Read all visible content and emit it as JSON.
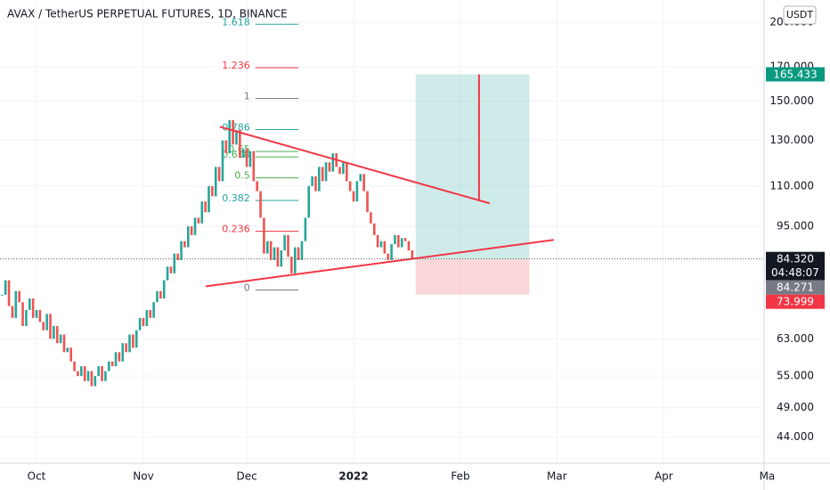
{
  "chart_data": {
    "type": "candlestick",
    "title": "AVAX / TetherUS PERPETUAL FUTURES, 1D, BINANCE",
    "currency": "USDT",
    "x": [
      -10,
      -9,
      -8,
      -7,
      -6,
      -5,
      -4,
      -3,
      -2,
      -1,
      0,
      1,
      2,
      3,
      4,
      5,
      6,
      7,
      8,
      9,
      10,
      11,
      12,
      13,
      14,
      15,
      16,
      17,
      18,
      19,
      20,
      21,
      22,
      23,
      24,
      25,
      26,
      27,
      28,
      29,
      30,
      31,
      32,
      33,
      34,
      35,
      36,
      37,
      38,
      39,
      40,
      41,
      42,
      43,
      44,
      45,
      46,
      47,
      48,
      49,
      50,
      51,
      52,
      53,
      54,
      55,
      56,
      57,
      58,
      59,
      60,
      61,
      62,
      63,
      64,
      65,
      66,
      67,
      68,
      69,
      70,
      71,
      72,
      73,
      74,
      75,
      76,
      77,
      78,
      79,
      80,
      81,
      82,
      83,
      84,
      85,
      86,
      87,
      88,
      89,
      90,
      91,
      92,
      93,
      94,
      95,
      96,
      97,
      98,
      99,
      100,
      101,
      102,
      103,
      104,
      105,
      106,
      107,
      108,
      109
    ],
    "values": [
      74,
      78,
      71,
      68,
      75,
      72,
      66,
      70,
      73,
      68,
      70,
      67,
      65,
      69,
      63,
      66,
      62,
      64,
      60,
      61,
      58,
      56,
      55,
      57,
      54,
      56,
      53,
      55,
      57,
      54,
      56,
      58,
      57,
      60,
      58,
      62,
      60,
      64,
      61,
      65,
      68,
      66,
      70,
      68,
      72,
      75,
      73,
      78,
      82,
      80,
      86,
      84,
      90,
      88,
      95,
      92,
      98,
      96,
      104,
      100,
      110,
      106,
      118,
      112,
      130,
      124,
      140,
      128,
      135,
      122,
      126,
      118,
      125,
      112,
      108,
      98,
      86,
      90,
      84,
      88,
      82,
      87,
      92,
      85,
      80,
      88,
      84,
      90,
      98,
      110,
      114,
      108,
      118,
      112,
      120,
      116,
      124,
      118,
      115,
      120,
      112,
      108,
      104,
      112,
      115,
      108,
      100,
      96,
      92,
      88,
      90,
      86,
      84,
      89,
      92,
      88,
      91,
      90,
      87,
      84.32
    ],
    "up_color": "#26a69a",
    "down_color": "#ef5350",
    "xlim": [
      -10.6,
      213
    ],
    "xticks": [
      {
        "value": 0,
        "label": "Oct"
      },
      {
        "value": 31,
        "label": "Nov"
      },
      {
        "value": 61,
        "label": "Dec"
      },
      {
        "value": 92,
        "label": "2022"
      },
      {
        "value": 123,
        "label": "Feb"
      },
      {
        "value": 151,
        "label": "Mar"
      },
      {
        "value": 182,
        "label": "Apr"
      },
      {
        "value": 212,
        "label": "Ma"
      }
    ],
    "ylim": [
      40,
      217
    ],
    "log_scale": true,
    "yticks": [
      {
        "value": 44,
        "label": "44.000"
      },
      {
        "value": 49,
        "label": "49.000"
      },
      {
        "value": 55,
        "label": "55.000"
      },
      {
        "value": 63,
        "label": "63.000"
      },
      {
        "value": 95,
        "label": "95.000"
      },
      {
        "value": 110,
        "label": "110.000"
      },
      {
        "value": 130,
        "label": "130.000"
      },
      {
        "value": 150,
        "label": "150.000"
      },
      {
        "value": 170,
        "label": "170.000"
      },
      {
        "value": 200,
        "label": "200.000"
      }
    ],
    "markers": [
      {
        "value": 165.433,
        "label": "165.433",
        "color": "#089981"
      },
      {
        "value": 84.32,
        "label": "84.320",
        "sublabel": "04:48:07",
        "color": "#131722"
      },
      {
        "value": 84.271,
        "label": "84.271",
        "color": "#787b86"
      },
      {
        "value": 73.999,
        "label": "73.999",
        "color": "#f23645"
      }
    ],
    "position_x": [
      110,
      143
    ],
    "fib": {
      "low": 75.3,
      "high": 151.5,
      "x": [
        63.5,
        76
      ],
      "levels": [
        1.618,
        1.236,
        1,
        0.786,
        0.65,
        0.618,
        0.5,
        0.382,
        0.236,
        0
      ],
      "colors": [
        "#26a69a",
        "#f23645",
        "#787b86",
        "#26a69a",
        "#4caf50",
        "#4caf50",
        "#4caf50",
        "#26a69a",
        "#f23645",
        "#787b86"
      ]
    },
    "line_color": "#f23645",
    "lines": [
      {
        "x": [
          53.2,
          131.5
        ],
        "y": [
          136.6,
          103.3
        ]
      },
      {
        "x": [
          49.1,
          150.1
        ],
        "y": [
          76.3,
          90.4
        ]
      },
      {
        "x": [
          128.4,
          128.4
        ],
        "y": [
          165.4,
          104.4
        ]
      }
    ]
  }
}
